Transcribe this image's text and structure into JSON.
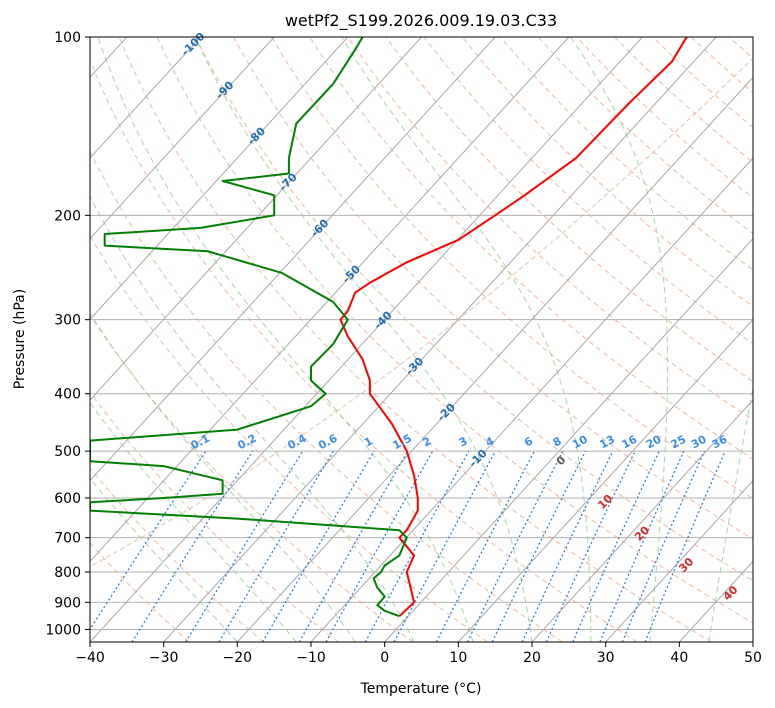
{
  "chart_data": {
    "type": "line",
    "title": "wetPf2_S199.2026.009.19.03.C33",
    "xlabel": "Temperature (°C)",
    "ylabel": "Pressure (hPa)",
    "xlim": [
      -40,
      50
    ],
    "ylim": [
      1050,
      100
    ],
    "y_scale": "log",
    "grid": true,
    "x_ticks": [
      "−40",
      "−30",
      "−20",
      "−10",
      "0",
      "10",
      "20",
      "30",
      "40",
      "50"
    ],
    "x_tick_values": [
      -40,
      -30,
      -20,
      -10,
      0,
      10,
      20,
      30,
      40,
      50
    ],
    "y_ticks": [
      "100",
      "200",
      "300",
      "400",
      "500",
      "600",
      "700",
      "800",
      "900",
      "1000"
    ],
    "y_tick_values": [
      100,
      200,
      300,
      400,
      500,
      600,
      700,
      800,
      900,
      1000
    ],
    "colors": {
      "temperature": "#ff0000",
      "dewpoint": "#008000",
      "isotherm": "#999999",
      "dry_adiabat": "#f4a582",
      "moist_adiabat": "#9bd39b",
      "mixing_ratio": "#1f77e4",
      "mixing_label": "#3a8ee6",
      "isotherm_label": "#1f6fb0",
      "moist_label": "#d62728",
      "moist_label_zero": "#555555",
      "dry_arc": "#d9b99b"
    },
    "series": [
      {
        "name": "",
        "role": "temperature",
        "points": [
          [
            2,
            950
          ],
          [
            4,
            900
          ],
          [
            3,
            800
          ],
          [
            4,
            750
          ],
          [
            2,
            700
          ],
          [
            3,
            680
          ],
          [
            4.5,
            630
          ],
          [
            4.5,
            600
          ],
          [
            4,
            550
          ],
          [
            3,
            500
          ],
          [
            1,
            450
          ],
          [
            -2,
            400
          ],
          [
            -2,
            380
          ],
          [
            -3,
            350
          ],
          [
            -5,
            320
          ],
          [
            -6,
            300
          ],
          [
            -5,
            290
          ],
          [
            -4,
            270
          ],
          [
            -2,
            260
          ],
          [
            3,
            240
          ],
          [
            10,
            220
          ],
          [
            15,
            200
          ],
          [
            19,
            185
          ],
          [
            26,
            160
          ],
          [
            33,
            130
          ],
          [
            39,
            110
          ],
          [
            41,
            100
          ]
        ]
      },
      {
        "name": "",
        "role": "dewpoint",
        "points": [
          [
            2,
            950
          ],
          [
            0,
            930
          ],
          [
            -1,
            910
          ],
          [
            0,
            880
          ],
          [
            -1,
            850
          ],
          [
            -1.5,
            820
          ],
          [
            -0.5,
            800
          ],
          [
            0,
            780
          ],
          [
            2,
            750
          ],
          [
            3,
            700
          ],
          [
            2,
            680
          ],
          [
            -20,
            650
          ],
          [
            -40,
            630
          ],
          [
            -40,
            610
          ],
          [
            -30,
            600
          ],
          [
            -22,
            590
          ],
          [
            -22,
            560
          ],
          [
            -30,
            530
          ],
          [
            -40,
            520
          ],
          [
            -40,
            480
          ],
          [
            -20,
            460
          ],
          [
            -10,
            420
          ],
          [
            -8,
            400
          ],
          [
            -10,
            380
          ],
          [
            -10,
            360
          ],
          [
            -7,
            330
          ],
          [
            -5,
            300
          ],
          [
            -7,
            280
          ],
          [
            -14,
            250
          ],
          [
            -24,
            230
          ],
          [
            -38,
            225
          ],
          [
            -38,
            215
          ],
          [
            -25,
            210
          ],
          [
            -15,
            200
          ],
          [
            -15,
            185
          ],
          [
            -22,
            175
          ],
          [
            -13,
            170
          ],
          [
            -13,
            160
          ],
          [
            -12,
            140
          ],
          [
            -7,
            120
          ],
          [
            -4,
            105
          ],
          [
            -3,
            100
          ]
        ]
      }
    ],
    "isotherms": {
      "values": [
        -100,
        -90,
        -80,
        -70,
        -60,
        -50,
        -40,
        -30,
        -20,
        -10
      ],
      "labels": [
        "-100",
        "-90",
        "-80",
        "-70",
        "-60",
        "-50",
        "-40",
        "-30",
        "-20",
        "-10"
      ]
    },
    "moist_adiabats": {
      "values": [
        0,
        10,
        20,
        30,
        40
      ],
      "labels": [
        "0",
        "10",
        "20",
        "30",
        "40"
      ]
    },
    "mixing_ratios": {
      "values": [
        0.1,
        0.2,
        0.4,
        0.6,
        1,
        1.5,
        2,
        3,
        4,
        6,
        8,
        10,
        13,
        16,
        20,
        25,
        30,
        36
      ],
      "labels": [
        "0.1",
        "0.2",
        "0.4",
        "0.6",
        "1",
        "1.5",
        "2",
        "3",
        "4",
        "6",
        "8",
        "10",
        "13",
        "16",
        "20",
        "25",
        "30",
        "36"
      ]
    }
  }
}
